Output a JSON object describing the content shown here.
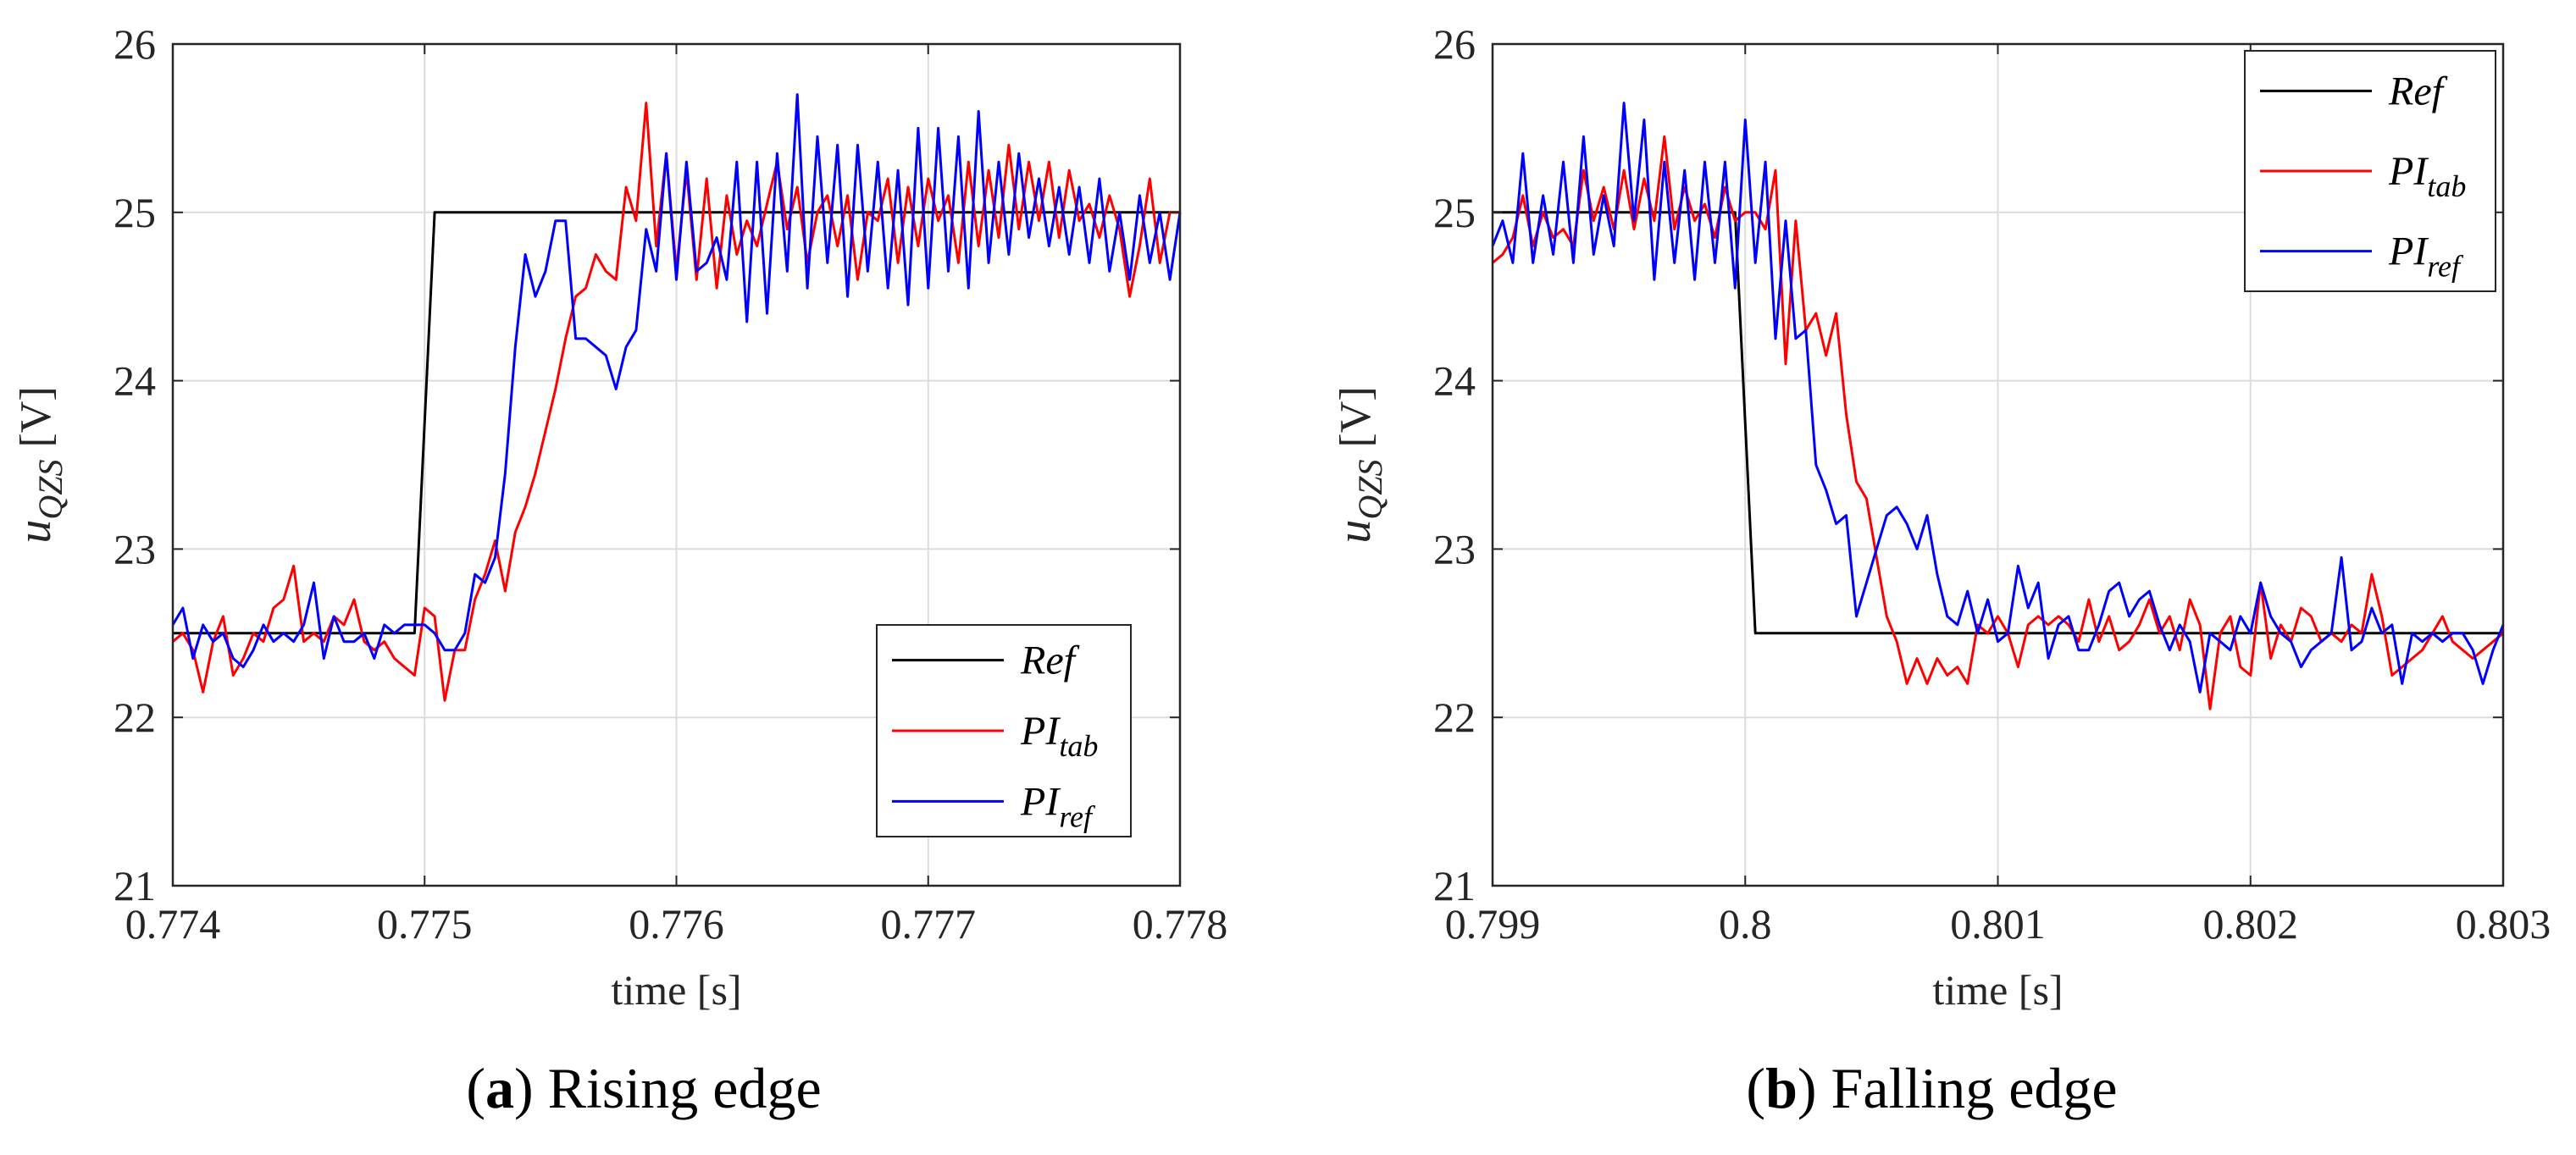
{
  "chart_data": [
    {
      "id": "a",
      "type": "line",
      "caption": {
        "letter": "a",
        "text": "Rising edge"
      },
      "xlabel": "time [s]",
      "ylabel": {
        "main": "u",
        "sub": "QZS",
        "unit": "[V]"
      },
      "xlim": [
        0.774,
        0.778
      ],
      "ylim": [
        21,
        26
      ],
      "xticks": [
        0.774,
        0.775,
        0.776,
        0.777,
        0.778
      ],
      "xtick_labels": [
        "0.774",
        "0.775",
        "0.776",
        "0.777",
        "0.778"
      ],
      "yticks": [
        21,
        22,
        23,
        24,
        25,
        26
      ],
      "ytick_labels": [
        "21",
        "22",
        "23",
        "24",
        "25",
        "26"
      ],
      "grid": true,
      "legend_position": "bottom-right",
      "series": [
        {
          "name": "Ref",
          "main": "Ref",
          "sub": "",
          "color": "#000000",
          "x": [
            0.774,
            0.77496,
            0.77504,
            0.778
          ],
          "y": [
            22.5,
            22.5,
            25.0,
            25.0
          ]
        },
        {
          "name": "PI_tab",
          "main": "PI",
          "sub": "tab",
          "color": "#ff0000",
          "x": [
            0.774,
            0.77404,
            0.77408,
            0.77412,
            0.77416,
            0.7742,
            0.77424,
            0.77428,
            0.77432,
            0.77436,
            0.7744,
            0.77444,
            0.77448,
            0.77452,
            0.77456,
            0.7746,
            0.77464,
            0.77468,
            0.77472,
            0.77476,
            0.7748,
            0.77484,
            0.77488,
            0.77492,
            0.77496,
            0.775,
            0.77504,
            0.77508,
            0.77512,
            0.77516,
            0.7752,
            0.77524,
            0.77528,
            0.77532,
            0.77536,
            0.7754,
            0.77544,
            0.77548,
            0.77552,
            0.77556,
            0.7756,
            0.77564,
            0.77568,
            0.77572,
            0.77576,
            0.7758,
            0.77584,
            0.77588,
            0.77592,
            0.77596,
            0.776,
            0.77604,
            0.77608,
            0.77612,
            0.77616,
            0.7762,
            0.77624,
            0.77628,
            0.77632,
            0.77636,
            0.7764,
            0.77644,
            0.77648,
            0.77652,
            0.77656,
            0.7766,
            0.77664,
            0.77668,
            0.77672,
            0.77676,
            0.7768,
            0.77684,
            0.77688,
            0.77692,
            0.77696,
            0.777,
            0.77704,
            0.77708,
            0.77712,
            0.77716,
            0.7772,
            0.77724,
            0.77728,
            0.77732,
            0.77736,
            0.7774,
            0.77744,
            0.77748,
            0.77752,
            0.77756,
            0.7776,
            0.77764,
            0.77768,
            0.77772,
            0.77776,
            0.7778,
            0.77784,
            0.77788,
            0.77792,
            0.77796,
            0.778
          ],
          "y": [
            22.45,
            22.5,
            22.4,
            22.15,
            22.45,
            22.6,
            22.25,
            22.35,
            22.5,
            22.45,
            22.65,
            22.7,
            22.9,
            22.45,
            22.5,
            22.45,
            22.6,
            22.55,
            22.7,
            22.45,
            22.4,
            22.45,
            22.35,
            22.3,
            22.25,
            22.65,
            22.6,
            22.1,
            22.4,
            22.4,
            22.7,
            22.85,
            23.05,
            22.75,
            23.1,
            23.25,
            23.45,
            23.7,
            23.95,
            24.25,
            24.5,
            24.55,
            24.75,
            24.65,
            24.6,
            25.15,
            24.95,
            25.65,
            24.8,
            25.35,
            24.65,
            25.25,
            24.6,
            25.2,
            24.55,
            25.1,
            24.75,
            24.95,
            24.8,
            25.05,
            25.3,
            24.9,
            25.15,
            24.7,
            25.0,
            25.1,
            24.8,
            25.1,
            24.6,
            25.0,
            24.95,
            25.2,
            24.7,
            25.15,
            24.8,
            25.2,
            24.95,
            25.1,
            24.7,
            25.3,
            24.8,
            25.25,
            24.85,
            25.4,
            24.9,
            25.3,
            24.95,
            25.3,
            24.85,
            25.25,
            24.95,
            25.05,
            24.85,
            25.1,
            24.9,
            24.5,
            24.8,
            25.2,
            24.7,
            25.0,
            25.0
          ]
        },
        {
          "name": "PI_ref",
          "main": "PI",
          "sub": "ref",
          "color": "#0000ff",
          "x": [
            0.774,
            0.77404,
            0.77408,
            0.77412,
            0.77416,
            0.7742,
            0.77424,
            0.77428,
            0.77432,
            0.77436,
            0.7744,
            0.77444,
            0.77448,
            0.77452,
            0.77456,
            0.7746,
            0.77464,
            0.77468,
            0.77472,
            0.77476,
            0.7748,
            0.77484,
            0.77488,
            0.77492,
            0.77496,
            0.775,
            0.77504,
            0.77508,
            0.77512,
            0.77516,
            0.7752,
            0.77524,
            0.77528,
            0.77532,
            0.77536,
            0.7754,
            0.77544,
            0.77548,
            0.77552,
            0.77556,
            0.7756,
            0.77564,
            0.77568,
            0.77572,
            0.77576,
            0.7758,
            0.77584,
            0.77588,
            0.77592,
            0.77596,
            0.776,
            0.77604,
            0.77608,
            0.77612,
            0.77616,
            0.7762,
            0.77624,
            0.77628,
            0.77632,
            0.77636,
            0.7764,
            0.77644,
            0.77648,
            0.77652,
            0.77656,
            0.7766,
            0.77664,
            0.77668,
            0.77672,
            0.77676,
            0.7768,
            0.77684,
            0.77688,
            0.77692,
            0.77696,
            0.777,
            0.77704,
            0.77708,
            0.77712,
            0.77716,
            0.7772,
            0.77724,
            0.77728,
            0.77732,
            0.77736,
            0.7774,
            0.77744,
            0.77748,
            0.77752,
            0.77756,
            0.7776,
            0.77764,
            0.77768,
            0.77772,
            0.77776,
            0.7778,
            0.77784,
            0.77788,
            0.77792,
            0.77796,
            0.778
          ],
          "y": [
            22.55,
            22.65,
            22.35,
            22.55,
            22.45,
            22.5,
            22.35,
            22.3,
            22.4,
            22.55,
            22.45,
            22.5,
            22.45,
            22.55,
            22.8,
            22.35,
            22.6,
            22.45,
            22.45,
            22.5,
            22.35,
            22.55,
            22.5,
            22.55,
            22.55,
            22.55,
            22.5,
            22.4,
            22.4,
            22.5,
            22.85,
            22.8,
            22.95,
            23.45,
            24.2,
            24.75,
            24.5,
            24.65,
            24.95,
            24.95,
            24.25,
            24.25,
            24.2,
            24.15,
            23.95,
            24.2,
            24.3,
            24.9,
            24.65,
            25.35,
            24.6,
            25.3,
            24.65,
            24.7,
            24.85,
            24.6,
            25.3,
            24.35,
            25.3,
            24.4,
            25.35,
            24.65,
            25.7,
            24.55,
            25.45,
            24.7,
            25.4,
            24.5,
            25.4,
            24.65,
            25.3,
            24.55,
            25.25,
            24.45,
            25.5,
            24.55,
            25.5,
            24.65,
            25.45,
            24.55,
            25.6,
            24.7,
            25.3,
            24.75,
            25.35,
            24.85,
            25.2,
            24.8,
            25.15,
            24.75,
            25.15,
            24.7,
            25.2,
            24.65,
            25.0,
            24.6,
            25.1,
            24.7,
            25.0,
            24.6,
            25.0
          ]
        }
      ]
    },
    {
      "id": "b",
      "type": "line",
      "caption": {
        "letter": "b",
        "text": "Falling edge"
      },
      "xlabel": "time [s]",
      "ylabel": {
        "main": "u",
        "sub": "QZS",
        "unit": "[V]"
      },
      "xlim": [
        0.799,
        0.803
      ],
      "ylim": [
        21,
        26
      ],
      "xticks": [
        0.799,
        0.8,
        0.801,
        0.802,
        0.803
      ],
      "xtick_labels": [
        "0.799",
        "0.8",
        "0.801",
        "0.802",
        "0.803"
      ],
      "yticks": [
        21,
        22,
        23,
        24,
        25,
        26
      ],
      "ytick_labels": [
        "21",
        "22",
        "23",
        "24",
        "25",
        "26"
      ],
      "grid": true,
      "legend_position": "top-right",
      "series": [
        {
          "name": "Ref",
          "main": "Ref",
          "sub": "",
          "color": "#000000",
          "x": [
            0.799,
            0.79996,
            0.80004,
            0.803
          ],
          "y": [
            25.0,
            25.0,
            22.5,
            22.5
          ]
        },
        {
          "name": "PI_tab",
          "main": "PI",
          "sub": "tab",
          "color": "#ff0000",
          "x": [
            0.799,
            0.79904,
            0.79908,
            0.79912,
            0.79916,
            0.7992,
            0.79924,
            0.79928,
            0.79932,
            0.79936,
            0.7994,
            0.79944,
            0.79948,
            0.79952,
            0.79956,
            0.7996,
            0.79964,
            0.79968,
            0.79972,
            0.79976,
            0.7998,
            0.79984,
            0.79988,
            0.79992,
            0.79996,
            0.8,
            0.80004,
            0.80008,
            0.80012,
            0.80016,
            0.8002,
            0.80024,
            0.80028,
            0.80032,
            0.80036,
            0.8004,
            0.80044,
            0.80048,
            0.80052,
            0.80056,
            0.8006,
            0.80064,
            0.80068,
            0.80072,
            0.80076,
            0.8008,
            0.80084,
            0.80088,
            0.80092,
            0.80096,
            0.801,
            0.80104,
            0.80108,
            0.80112,
            0.80116,
            0.8012,
            0.80124,
            0.80128,
            0.80132,
            0.80136,
            0.8014,
            0.80144,
            0.80148,
            0.80152,
            0.80156,
            0.8016,
            0.80164,
            0.80168,
            0.80172,
            0.80176,
            0.8018,
            0.80184,
            0.80188,
            0.80192,
            0.80196,
            0.802,
            0.80204,
            0.80208,
            0.80212,
            0.80216,
            0.8022,
            0.80224,
            0.80228,
            0.80232,
            0.80236,
            0.8024,
            0.80244,
            0.80248,
            0.80252,
            0.80256,
            0.8026,
            0.80264,
            0.80268,
            0.80272,
            0.80276,
            0.8028,
            0.80284,
            0.80288,
            0.80292,
            0.80296,
            0.803
          ],
          "y": [
            24.7,
            24.75,
            24.85,
            25.1,
            24.8,
            25.0,
            24.85,
            24.9,
            24.8,
            25.25,
            24.95,
            25.15,
            24.9,
            25.25,
            24.9,
            25.2,
            24.95,
            25.45,
            24.9,
            25.15,
            24.95,
            25.05,
            24.85,
            25.15,
            24.95,
            25.0,
            25.0,
            24.9,
            25.25,
            24.1,
            24.95,
            24.3,
            24.4,
            24.15,
            24.4,
            23.8,
            23.4,
            23.3,
            22.95,
            22.6,
            22.45,
            22.2,
            22.35,
            22.2,
            22.35,
            22.25,
            22.3,
            22.2,
            22.55,
            22.5,
            22.6,
            22.5,
            22.3,
            22.55,
            22.6,
            22.55,
            22.6,
            22.55,
            22.45,
            22.7,
            22.45,
            22.6,
            22.4,
            22.45,
            22.55,
            22.7,
            22.5,
            22.6,
            22.4,
            22.7,
            22.55,
            22.05,
            22.5,
            22.6,
            22.3,
            22.25,
            22.8,
            22.35,
            22.55,
            22.45,
            22.65,
            22.6,
            22.45,
            22.5,
            22.45,
            22.55,
            22.5,
            22.85,
            22.6,
            22.25,
            22.3,
            22.35,
            22.4,
            22.5,
            22.6,
            22.45,
            22.4,
            22.35,
            22.4,
            22.45,
            22.5
          ]
        },
        {
          "name": "PI_ref",
          "main": "PI",
          "sub": "ref",
          "color": "#0000ff",
          "x": [
            0.799,
            0.79904,
            0.79908,
            0.79912,
            0.79916,
            0.7992,
            0.79924,
            0.79928,
            0.79932,
            0.79936,
            0.7994,
            0.79944,
            0.79948,
            0.79952,
            0.79956,
            0.7996,
            0.79964,
            0.79968,
            0.79972,
            0.79976,
            0.7998,
            0.79984,
            0.79988,
            0.79992,
            0.79996,
            0.8,
            0.80004,
            0.80008,
            0.80012,
            0.80016,
            0.8002,
            0.80024,
            0.80028,
            0.80032,
            0.80036,
            0.8004,
            0.80044,
            0.80048,
            0.80052,
            0.80056,
            0.8006,
            0.80064,
            0.80068,
            0.80072,
            0.80076,
            0.8008,
            0.80084,
            0.80088,
            0.80092,
            0.80096,
            0.801,
            0.80104,
            0.80108,
            0.80112,
            0.80116,
            0.8012,
            0.80124,
            0.80128,
            0.80132,
            0.80136,
            0.8014,
            0.80144,
            0.80148,
            0.80152,
            0.80156,
            0.8016,
            0.80164,
            0.80168,
            0.80172,
            0.80176,
            0.8018,
            0.80184,
            0.80188,
            0.80192,
            0.80196,
            0.802,
            0.80204,
            0.80208,
            0.80212,
            0.80216,
            0.8022,
            0.80224,
            0.80228,
            0.80232,
            0.80236,
            0.8024,
            0.80244,
            0.80248,
            0.80252,
            0.80256,
            0.8026,
            0.80264,
            0.80268,
            0.80272,
            0.80276,
            0.8028,
            0.80284,
            0.80288,
            0.80292,
            0.80296,
            0.803
          ],
          "y": [
            24.8,
            24.95,
            24.7,
            25.35,
            24.7,
            25.1,
            24.75,
            25.3,
            24.7,
            25.45,
            24.75,
            25.1,
            24.8,
            25.65,
            24.95,
            25.55,
            24.6,
            25.3,
            24.7,
            25.25,
            24.6,
            25.3,
            24.7,
            25.3,
            24.55,
            25.55,
            24.7,
            25.3,
            24.25,
            24.95,
            24.25,
            24.3,
            23.5,
            23.35,
            23.15,
            23.2,
            22.6,
            22.8,
            23.0,
            23.2,
            23.25,
            23.15,
            23.0,
            23.2,
            22.85,
            22.6,
            22.55,
            22.75,
            22.5,
            22.7,
            22.45,
            22.5,
            22.9,
            22.65,
            22.8,
            22.35,
            22.55,
            22.6,
            22.4,
            22.4,
            22.55,
            22.75,
            22.8,
            22.6,
            22.7,
            22.75,
            22.55,
            22.4,
            22.55,
            22.45,
            22.15,
            22.5,
            22.45,
            22.4,
            22.6,
            22.5,
            22.8,
            22.6,
            22.5,
            22.45,
            22.3,
            22.4,
            22.45,
            22.5,
            22.95,
            22.4,
            22.45,
            22.65,
            22.5,
            22.55,
            22.2,
            22.5,
            22.45,
            22.5,
            22.45,
            22.5,
            22.5,
            22.4,
            22.2,
            22.4,
            22.55
          ]
        }
      ]
    }
  ]
}
